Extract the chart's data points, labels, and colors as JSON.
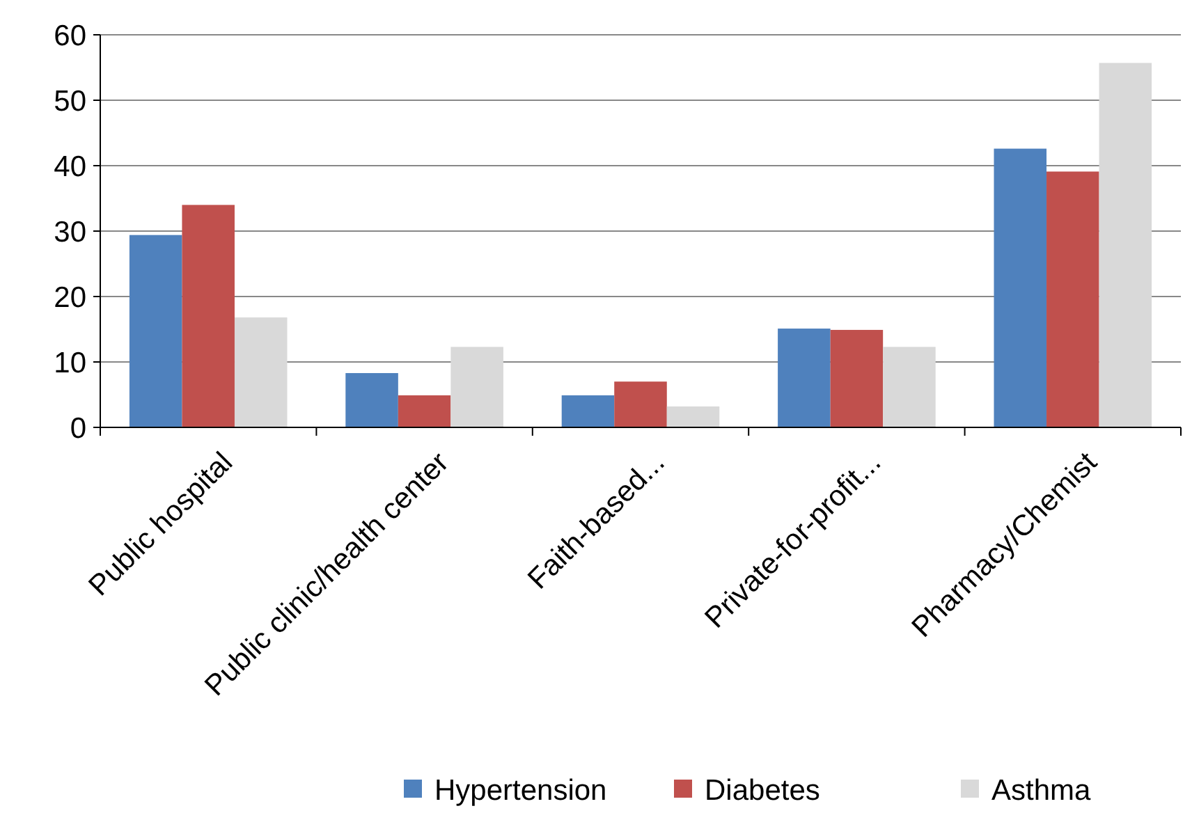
{
  "chart_data": {
    "type": "bar",
    "categories": [
      "Public hospital",
      "Public clinic/health center",
      "Faith-based...",
      "Private-for-profit...",
      "Pharmacy/Chemist"
    ],
    "series": [
      {
        "name": "Hypertension",
        "color": "#4f81bd",
        "values": [
          29.4,
          8.3,
          4.9,
          15.1,
          42.6
        ]
      },
      {
        "name": "Diabetes",
        "color": "#c0504d",
        "values": [
          34,
          4.9,
          7,
          14.9,
          39.1
        ]
      },
      {
        "name": "Asthma",
        "color": "#d9d9d9",
        "values": [
          16.8,
          12.3,
          3.2,
          12.3,
          55.7
        ]
      }
    ],
    "ylim": [
      0,
      60
    ],
    "yticks": [
      0,
      10,
      20,
      30,
      40,
      50,
      60
    ],
    "grid": "y",
    "legend": "bottom right"
  }
}
